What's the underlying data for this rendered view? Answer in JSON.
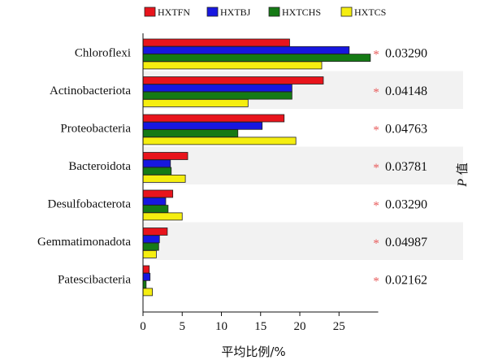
{
  "chart_data": {
    "type": "bar",
    "orientation": "horizontal",
    "categories": [
      "Chloroflexi",
      "Actinobacteriota",
      "Proteobacteria",
      "Bacteroidota",
      "Desulfobacterota",
      "Gemmatimonadota",
      "Patescibacteria"
    ],
    "series": [
      {
        "name": "HXTFN",
        "color": "#e8141c",
        "values": [
          18.7,
          23.0,
          18.0,
          5.7,
          3.8,
          3.1,
          0.8
        ]
      },
      {
        "name": "HXTBJ",
        "color": "#1717e0",
        "values": [
          26.3,
          19.0,
          15.2,
          3.5,
          2.9,
          2.1,
          0.9
        ]
      },
      {
        "name": "HXTCHS",
        "color": "#157a15",
        "values": [
          29.0,
          19.0,
          12.1,
          3.6,
          3.2,
          2.0,
          0.4
        ]
      },
      {
        "name": "HXTCS",
        "color": "#f5ee10",
        "values": [
          22.8,
          13.4,
          19.5,
          5.4,
          5.0,
          1.7,
          1.2
        ]
      }
    ],
    "significance": [
      "*",
      "*",
      "*",
      "*",
      "*",
      "*",
      "*"
    ],
    "p_values": [
      "0.03290",
      "0.04148",
      "0.04763",
      "0.03781",
      "0.03290",
      "0.04987",
      "0.02162"
    ],
    "xticks": [
      "0",
      "5",
      "10",
      "15",
      "20",
      "25"
    ],
    "xlim": [
      0,
      30
    ],
    "xlabel": "平均比例/%",
    "ylabel_italic": "P",
    "ylabel_rest": " 值",
    "legend_position": "top",
    "grid": false
  }
}
